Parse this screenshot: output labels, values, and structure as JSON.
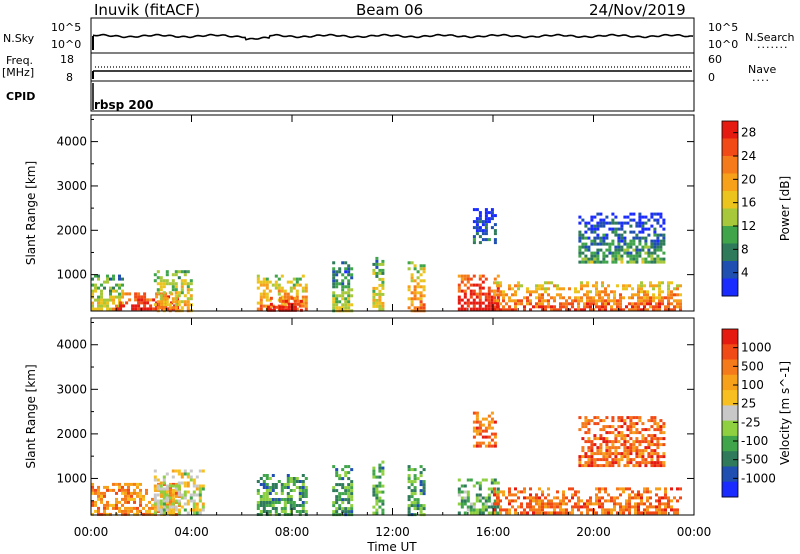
{
  "header": {
    "station": "Inuvik (fitACF)",
    "beam": "Beam 06",
    "date": "24/Nov/2019"
  },
  "top_panels": {
    "nsky_label": "N.Sky",
    "nsearch_label": "N.Search",
    "nsky_ticks": [
      "10^5",
      "10^0"
    ],
    "freq_label": "Freq.",
    "freq_unit": "[MHz]",
    "freq_ticks": [
      "18",
      "8"
    ],
    "nave_label": "Nave",
    "nave_ticks": [
      "60",
      "0"
    ],
    "cpid_label": "CPID",
    "cpid_value": "rbsp 200"
  },
  "chart_data": [
    {
      "type": "heatmap",
      "name": "power",
      "ylabel": "Slant Range [km]",
      "xlabel": "Time UT",
      "xlim_hours": [
        0,
        24
      ],
      "ylim": [
        180,
        4600
      ],
      "x_ticks": [
        "00:00",
        "04:00",
        "08:00",
        "12:00",
        "16:00",
        "20:00",
        "00:00"
      ],
      "y_ticks": [
        1000,
        2000,
        3000,
        4000
      ],
      "colorbar": {
        "label": "Power [dB]",
        "ticks": [
          "4",
          "8",
          "12",
          "16",
          "20",
          "24",
          "28"
        ],
        "colors": [
          "#1a2bff",
          "#1f4fb0",
          "#2e7a5a",
          "#3fa44a",
          "#a6c83a",
          "#ecc41e",
          "#f7a11b",
          "#f57a1a",
          "#f24a16",
          "#e51b12"
        ]
      },
      "regions": [
        {
          "t0": 0.0,
          "t1": 1.2,
          "r0": 200,
          "r1": 1000,
          "level": 0.45
        },
        {
          "t0": 1.0,
          "t1": 3.5,
          "r0": 200,
          "r1": 600,
          "level": 0.9
        },
        {
          "t0": 2.5,
          "t1": 4.0,
          "r0": 200,
          "r1": 1100,
          "level": 0.5
        },
        {
          "t0": 6.6,
          "t1": 8.6,
          "r0": 200,
          "r1": 1000,
          "level": 0.6
        },
        {
          "t0": 7.0,
          "t1": 8.4,
          "r0": 200,
          "r1": 500,
          "level": 0.95
        },
        {
          "t0": 9.6,
          "t1": 10.4,
          "r0": 200,
          "r1": 1300,
          "level": 0.35
        },
        {
          "t0": 11.2,
          "t1": 11.6,
          "r0": 200,
          "r1": 1400,
          "level": 0.45
        },
        {
          "t0": 12.6,
          "t1": 13.2,
          "r0": 200,
          "r1": 1300,
          "level": 0.6
        },
        {
          "t0": 14.6,
          "t1": 16.2,
          "r0": 200,
          "r1": 1000,
          "level": 0.9
        },
        {
          "t0": 16.0,
          "t1": 23.5,
          "r0": 200,
          "r1": 850,
          "level": 0.7
        },
        {
          "t0": 15.2,
          "t1": 16.1,
          "r0": 1700,
          "r1": 2500,
          "level": 0.15
        },
        {
          "t0": 19.4,
          "t1": 22.8,
          "r0": 1300,
          "r1": 2400,
          "level": 0.2
        }
      ]
    },
    {
      "type": "heatmap",
      "name": "velocity",
      "ylabel": "Slant Range [km]",
      "xlabel": "Time UT",
      "xlim_hours": [
        0,
        24
      ],
      "ylim": [
        180,
        4600
      ],
      "x_ticks": [
        "00:00",
        "04:00",
        "08:00",
        "12:00",
        "16:00",
        "20:00",
        "00:00"
      ],
      "y_ticks": [
        1000,
        2000,
        3000,
        4000
      ],
      "colorbar": {
        "label": "Velocity [m s^-1]",
        "ticks": [
          "1000",
          "500",
          "100",
          "25",
          "-25",
          "-100",
          "-500",
          "-1000"
        ],
        "colors": [
          "#1a2bff",
          "#1f4fb0",
          "#2e7a5a",
          "#3fa44a",
          "#8fd040",
          "#c8c8c8",
          "#f7c020",
          "#f7a11b",
          "#f57a1a",
          "#f24a16",
          "#e51b12"
        ]
      },
      "regions": [
        {
          "t0": 0.0,
          "t1": 3.5,
          "r0": 200,
          "r1": 900,
          "level": 0.75
        },
        {
          "t0": 2.5,
          "t1": 4.5,
          "r0": 200,
          "r1": 1200,
          "level": 0.5
        },
        {
          "t0": 6.6,
          "t1": 8.6,
          "r0": 200,
          "r1": 1100,
          "level": 0.3
        },
        {
          "t0": 9.6,
          "t1": 10.4,
          "r0": 200,
          "r1": 1300,
          "level": 0.3
        },
        {
          "t0": 11.2,
          "t1": 11.6,
          "r0": 200,
          "r1": 1400,
          "level": 0.3
        },
        {
          "t0": 12.6,
          "t1": 13.2,
          "r0": 200,
          "r1": 1300,
          "level": 0.3
        },
        {
          "t0": 14.6,
          "t1": 16.2,
          "r0": 200,
          "r1": 1000,
          "level": 0.35
        },
        {
          "t0": 16.0,
          "t1": 23.5,
          "r0": 200,
          "r1": 800,
          "level": 0.8
        },
        {
          "t0": 15.2,
          "t1": 16.1,
          "r0": 1700,
          "r1": 2500,
          "level": 0.8
        },
        {
          "t0": 19.4,
          "t1": 22.8,
          "r0": 1300,
          "r1": 2400,
          "level": 0.82
        }
      ]
    }
  ]
}
